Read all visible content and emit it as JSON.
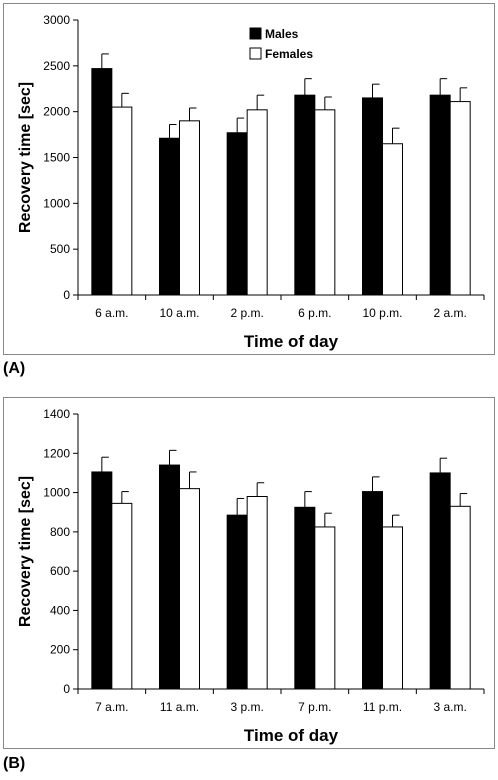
{
  "chart_data": [
    {
      "type": "bar",
      "panel_label": "(A)",
      "categories": [
        "6 a.m.",
        "10 a.m.",
        "2 p.m.",
        "6 p.m.",
        "10 p.m.",
        "2 a.m."
      ],
      "series": [
        {
          "name": "Males",
          "values": [
            2470,
            1710,
            1770,
            2180,
            2150,
            2180
          ],
          "errors": [
            160,
            150,
            160,
            180,
            150,
            180
          ],
          "color": "#000000"
        },
        {
          "name": "Females",
          "values": [
            2050,
            1900,
            2020,
            2020,
            1650,
            2110
          ],
          "errors": [
            150,
            140,
            160,
            140,
            170,
            150
          ],
          "color": "#ffffff"
        }
      ],
      "xlabel": "Time of day",
      "ylabel": "Recovery time [sec]",
      "ylim": [
        0,
        3000
      ],
      "yticks": [
        0,
        500,
        1000,
        1500,
        2000,
        2500,
        3000
      ],
      "legend": "top-center",
      "grid": false
    },
    {
      "type": "bar",
      "panel_label": "(B)",
      "categories": [
        "7 a.m.",
        "11 a.m.",
        "3 p.m.",
        "7 p.m.",
        "11 p.m.",
        "3 a.m."
      ],
      "series": [
        {
          "name": "Males",
          "values": [
            1105,
            1140,
            885,
            925,
            1005,
            1100
          ],
          "errors": [
            75,
            75,
            85,
            80,
            75,
            75
          ],
          "color": "#000000"
        },
        {
          "name": "Females",
          "values": [
            945,
            1020,
            980,
            825,
            825,
            930
          ],
          "errors": [
            60,
            85,
            70,
            70,
            60,
            65
          ],
          "color": "#ffffff"
        }
      ],
      "xlabel": "Time of day",
      "ylabel": "Recovery time [sec]",
      "ylim": [
        0,
        1400
      ],
      "yticks": [
        0,
        200,
        400,
        600,
        800,
        1000,
        1200,
        1400
      ],
      "grid": false
    }
  ]
}
